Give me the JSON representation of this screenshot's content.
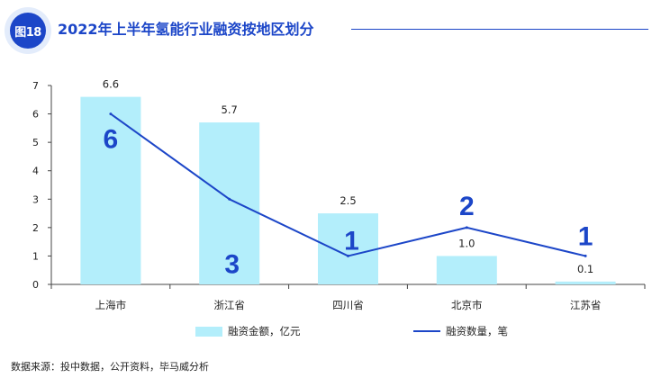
{
  "header": {
    "badge": "图18",
    "title": "2022年上半年氢能行业融资按地区划分"
  },
  "colors": {
    "accent": "#1c46c8",
    "bar": "#b3eefb",
    "axis": "#444444"
  },
  "chart_data": {
    "type": "bar",
    "title": "2022年上半年氢能行业融资按地区划分",
    "categories": [
      "上海市",
      "浙江省",
      "四川省",
      "北京市",
      "江苏省"
    ],
    "ylim": [
      0,
      7
    ],
    "yticks": [
      "0",
      "1",
      "2",
      "3",
      "4",
      "5",
      "6",
      "7"
    ],
    "series": [
      {
        "name": "融资金额，亿元",
        "kind": "bar",
        "values": [
          6.6,
          5.7,
          2.5,
          1.0,
          0.1
        ],
        "labels": [
          "6.6",
          "5.7",
          "2.5",
          "1.0",
          "0.1"
        ]
      },
      {
        "name": "融资数量，笔",
        "kind": "line",
        "values": [
          6,
          3,
          1,
          2,
          1
        ],
        "labels": [
          "6",
          "3",
          "1",
          "2",
          "1"
        ]
      }
    ],
    "legend": [
      "融资金额，亿元",
      "融资数量，笔"
    ],
    "legend_position": "bottom"
  },
  "source": "数据来源：投中数据，公开资料，毕马威分析"
}
